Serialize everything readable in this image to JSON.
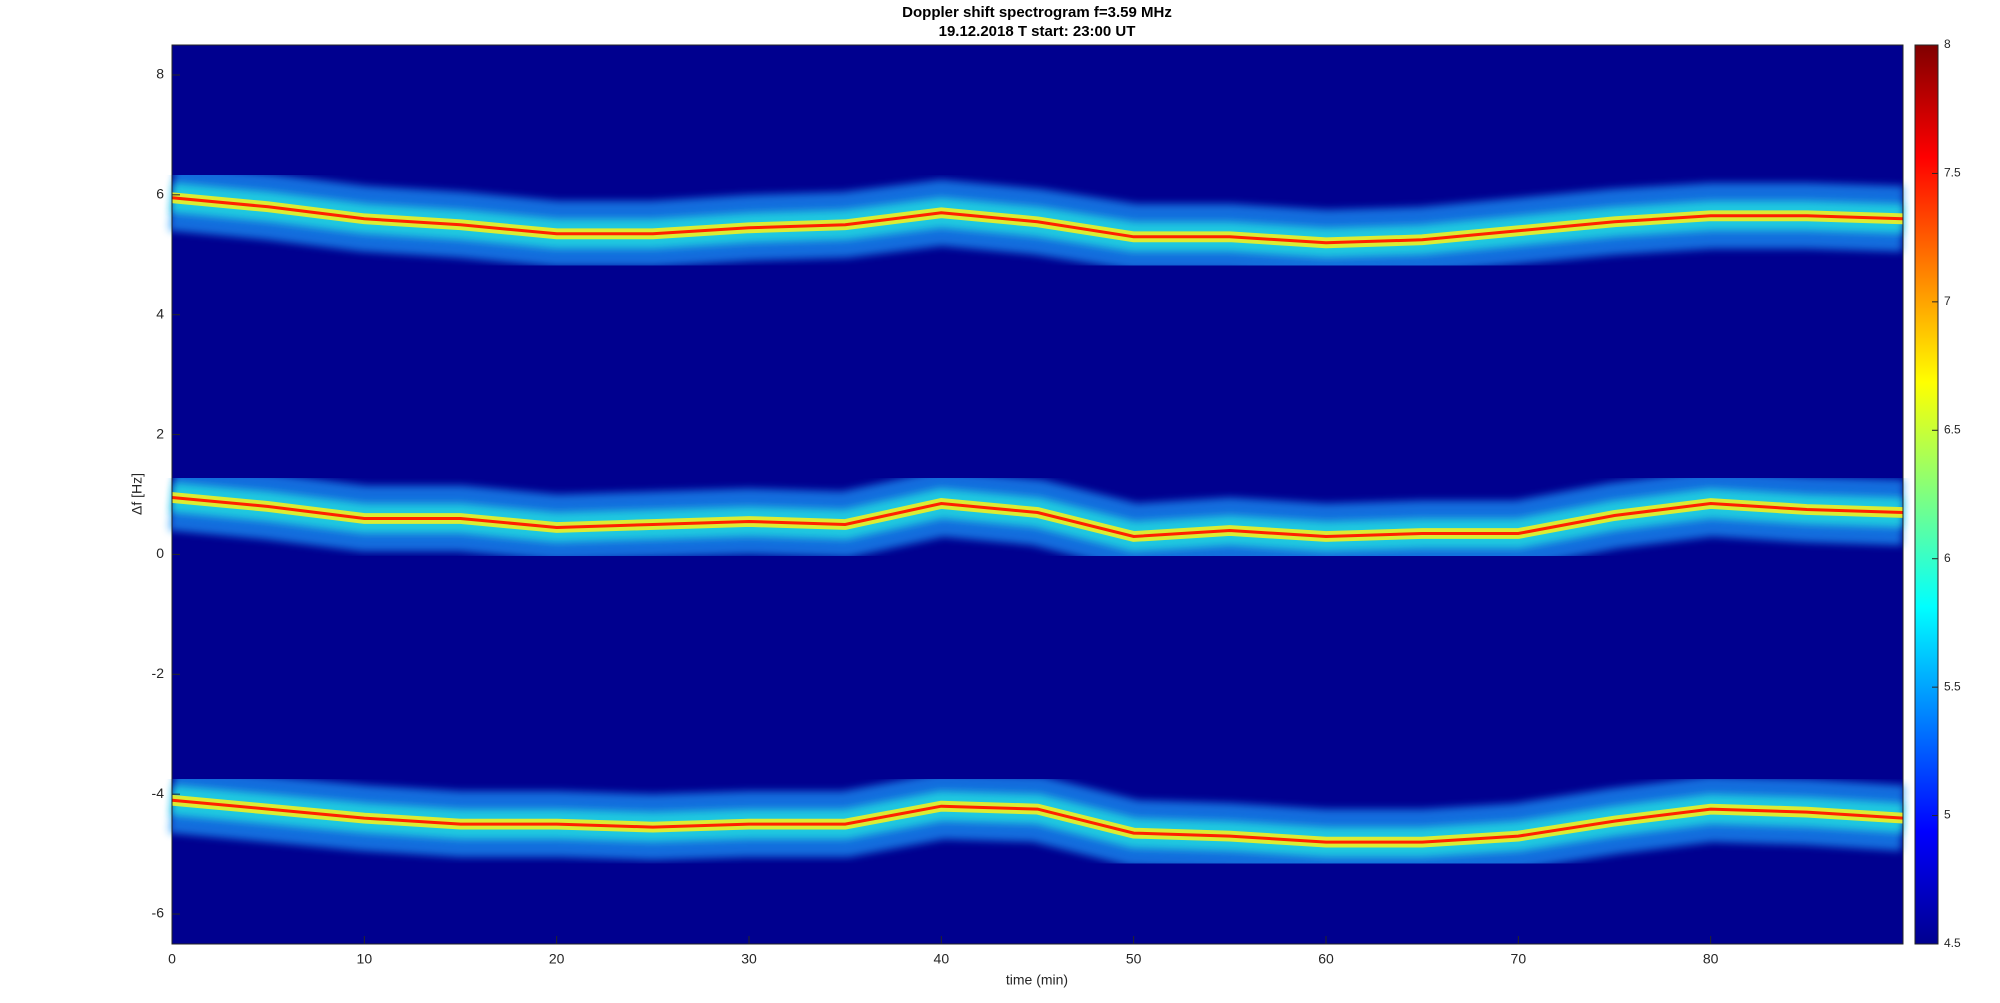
{
  "chart_data": {
    "type": "spectrogram",
    "title": "Doppler shift spectrogram f=3.59 MHz",
    "subtitle": "19.12.2018   T start: 23:00 UT",
    "x_label": "time (min)",
    "y_label": "Δf [Hz]",
    "x": [
      0,
      5,
      10,
      15,
      20,
      25,
      30,
      35,
      40,
      45,
      50,
      55,
      60,
      65,
      70,
      75,
      80,
      85,
      90
    ],
    "series": [
      {
        "color": "#ff2000",
        "values": [
          5.95,
          5.8,
          5.6,
          5.5,
          5.35,
          5.35,
          5.45,
          5.5,
          5.7,
          5.55,
          5.3,
          5.3,
          5.2,
          5.25,
          5.4,
          5.55,
          5.65,
          5.65,
          5.6
        ]
      },
      {
        "color": "#ff2000",
        "values": [
          0.95,
          0.8,
          0.6,
          0.6,
          0.45,
          0.5,
          0.55,
          0.5,
          0.85,
          0.7,
          0.3,
          0.4,
          0.3,
          0.35,
          0.35,
          0.65,
          0.85,
          0.75,
          0.7
        ]
      },
      {
        "color": "#ff2000",
        "values": [
          -4.1,
          -4.25,
          -4.4,
          -4.5,
          -4.5,
          -4.55,
          -4.5,
          -4.5,
          -4.2,
          -4.25,
          -4.65,
          -4.7,
          -4.8,
          -4.8,
          -4.7,
          -4.45,
          -4.25,
          -4.3,
          -4.4
        ]
      }
    ],
    "xlim": [
      0,
      90
    ],
    "xticks": [
      0,
      10,
      20,
      30,
      40,
      50,
      60,
      70,
      80
    ],
    "ylim": [
      -6.5,
      8.5
    ],
    "yticks": [
      -6,
      -4,
      -2,
      0,
      2,
      4,
      6,
      8
    ],
    "clim": [
      4.5,
      8
    ],
    "cticks": [
      4.5,
      5,
      5.5,
      6,
      6.5,
      7,
      7.5,
      8
    ],
    "colormap": "jet",
    "background": "#00008f"
  }
}
